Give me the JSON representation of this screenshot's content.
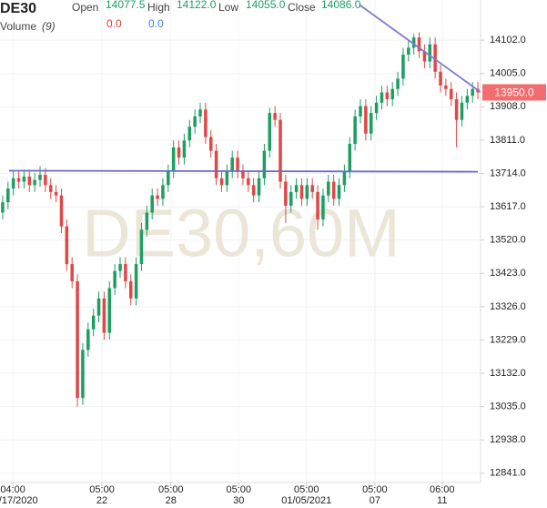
{
  "chart_data": {
    "type": "candlestick",
    "symbol": "DE30",
    "watermark": "DE30,60M",
    "header": [
      {
        "name": "Open",
        "value": "14077.5"
      },
      {
        "name": "High",
        "value": "14122.0"
      },
      {
        "name": "Low",
        "value": "14055.0"
      },
      {
        "name": "Close",
        "value": "14086.0"
      }
    ],
    "volume_label": "Volume",
    "volume_period": "(9)",
    "volume_values": [
      {
        "value": "0.0",
        "color": "#e53935"
      },
      {
        "value": "0.0",
        "color": "#3f7fd6"
      }
    ],
    "up_color": "#1e9e63",
    "down_color": "#e04848",
    "open": [
      13600,
      13630,
      13670,
      13700,
      13690,
      13705,
      13680,
      13695,
      13710,
      13680,
      13660,
      13650,
      13560,
      13450,
      13400,
      13060,
      13200,
      13260,
      13300,
      13350,
      13250,
      13380,
      13430,
      13450,
      13400,
      13350,
      13450,
      13550,
      13600,
      13650,
      13640,
      13680,
      13720,
      13790,
      13760,
      13810,
      13850,
      13880,
      13900,
      13820,
      13780,
      13700,
      13680,
      13720,
      13760,
      13720,
      13700,
      13680,
      13650,
      13700,
      13780,
      13890,
      13870,
      13690,
      13620,
      13660,
      13680,
      13640,
      13680,
      13660,
      13580,
      13650,
      13690,
      13640,
      13680,
      13720,
      13800,
      13880,
      13910,
      13830,
      13890,
      13920,
      13950,
      13930,
      13960,
      13990,
      14060,
      14080,
      14110,
      14070,
      14040,
      14090,
      14010,
      13970,
      13960,
      13930,
      13870,
      13920,
      13940,
      13960
    ],
    "high": [
      13650,
      13690,
      13720,
      13720,
      13725,
      13725,
      13715,
      13735,
      13730,
      13700,
      13680,
      13670,
      13580,
      13470,
      13420,
      13220,
      13280,
      13320,
      13370,
      13370,
      13400,
      13450,
      13470,
      13470,
      13420,
      13470,
      13570,
      13620,
      13670,
      13670,
      13700,
      13740,
      13810,
      13810,
      13830,
      13870,
      13900,
      13920,
      13920,
      13840,
      13800,
      13720,
      13740,
      13780,
      13780,
      13740,
      13720,
      13700,
      13720,
      13800,
      13905,
      13910,
      13890,
      13710,
      13680,
      13700,
      13700,
      13700,
      13700,
      13680,
      13670,
      13710,
      13710,
      13700,
      13740,
      13820,
      13900,
      13930,
      13930,
      13910,
      13940,
      13970,
      13970,
      13980,
      14010,
      14080,
      14100,
      14120,
      14125,
      14090,
      14110,
      14110,
      14030,
      13990,
      13980,
      13950,
      13940,
      13960,
      13980,
      13980
    ],
    "low": [
      13580,
      13610,
      13650,
      13670,
      13670,
      13660,
      13660,
      13675,
      13660,
      13640,
      13630,
      13540,
      13430,
      13380,
      13035,
      13040,
      13180,
      13240,
      13280,
      13230,
      13230,
      13360,
      13410,
      13380,
      13330,
      13330,
      13430,
      13530,
      13580,
      13620,
      13620,
      13660,
      13700,
      13740,
      13740,
      13790,
      13830,
      13860,
      13800,
      13760,
      13680,
      13660,
      13660,
      13700,
      13700,
      13680,
      13660,
      13630,
      13630,
      13680,
      13760,
      13850,
      13670,
      13570,
      13600,
      13640,
      13620,
      13620,
      13640,
      13550,
      13560,
      13630,
      13620,
      13620,
      13660,
      13700,
      13780,
      13860,
      13810,
      13810,
      13870,
      13900,
      13910,
      13910,
      13940,
      13970,
      14040,
      14060,
      14050,
      14020,
      14020,
      13990,
      13950,
      13940,
      13910,
      13790,
      13850,
      13900,
      13920,
      13930
    ],
    "close": [
      13630,
      13670,
      13700,
      13690,
      13705,
      13680,
      13695,
      13710,
      13680,
      13660,
      13650,
      13560,
      13450,
      13400,
      13060,
      13200,
      13260,
      13300,
      13350,
      13250,
      13380,
      13430,
      13450,
      13400,
      13350,
      13450,
      13550,
      13600,
      13650,
      13640,
      13680,
      13720,
      13790,
      13760,
      13810,
      13850,
      13880,
      13900,
      13820,
      13780,
      13700,
      13680,
      13720,
      13760,
      13720,
      13700,
      13680,
      13650,
      13700,
      13780,
      13890,
      13870,
      13690,
      13620,
      13660,
      13680,
      13640,
      13680,
      13660,
      13580,
      13650,
      13690,
      13640,
      13680,
      13720,
      13800,
      13880,
      13910,
      13830,
      13890,
      13920,
      13950,
      13930,
      13960,
      13990,
      14060,
      14080,
      14110,
      14070,
      14040,
      14090,
      14010,
      13970,
      13960,
      13930,
      13870,
      13920,
      13940,
      13960,
      13950
    ],
    "xlim": [
      0,
      90
    ],
    "ylim": [
      12814,
      14219
    ],
    "xticks": [
      {
        "value": 2.4,
        "label": "04:00",
        "sublabel": "12/17/2020"
      },
      {
        "value": 19.1,
        "label": "05:00",
        "sublabel": "22"
      },
      {
        "value": 32,
        "label": "05:00",
        "sublabel": "28"
      },
      {
        "value": 44.7,
        "label": "05:00",
        "sublabel": "30"
      },
      {
        "value": 57.4,
        "label": "05:00",
        "sublabel": "01/05/2021"
      },
      {
        "value": 70.2,
        "label": "05:00",
        "sublabel": "07"
      },
      {
        "value": 82.8,
        "label": "06:00",
        "sublabel": "11"
      }
    ],
    "yticks": [
      {
        "value": 14102,
        "label": "14102.0"
      },
      {
        "value": 14005,
        "label": "14005.0"
      },
      {
        "value": 13908,
        "label": "13908.0"
      },
      {
        "value": 13811,
        "label": "13811.0"
      },
      {
        "value": 13714,
        "label": "13714.0"
      },
      {
        "value": 13617,
        "label": "13617.0"
      },
      {
        "value": 13520,
        "label": "13520.0"
      },
      {
        "value": 13423,
        "label": "13423.0"
      },
      {
        "value": 13326,
        "label": "13326.0"
      },
      {
        "value": 13229,
        "label": "13229.0"
      },
      {
        "value": 13132,
        "label": "13132.0"
      },
      {
        "value": 13035,
        "label": "13035.0"
      },
      {
        "value": 12938,
        "label": "12938.0"
      },
      {
        "value": 12841,
        "label": "12841.0"
      }
    ],
    "grid": true,
    "trendlines": [
      {
        "x": [
          1.7,
          89.5
        ],
        "y": [
          13722,
          13719
        ],
        "color": "#6b6bc8"
      },
      {
        "x": [
          67.3,
          90
        ],
        "y": [
          14205,
          13951
        ],
        "color": "#7b7bd0"
      }
    ],
    "last_price": {
      "value": 13950,
      "label": "13950.0",
      "color": "#f26d6d"
    }
  }
}
